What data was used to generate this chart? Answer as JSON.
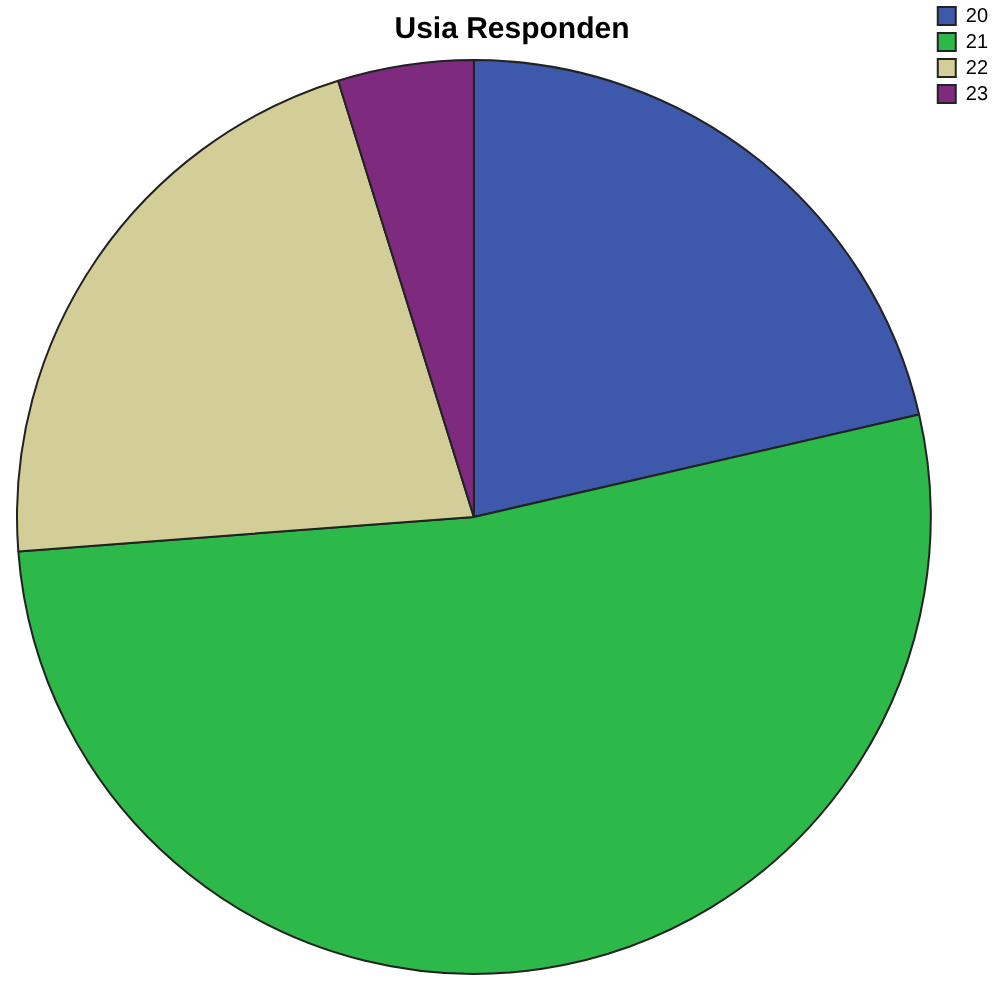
{
  "chart_data": {
    "type": "pie",
    "title": "Usia Responden",
    "categories": [
      "20",
      "21",
      "22",
      "23"
    ],
    "values": [
      21.4,
      52.4,
      21.4,
      4.8
    ],
    "colors": [
      "#3e58ac",
      "#2db84a",
      "#d3ce97",
      "#7e2a7e"
    ],
    "legend": "top right"
  }
}
